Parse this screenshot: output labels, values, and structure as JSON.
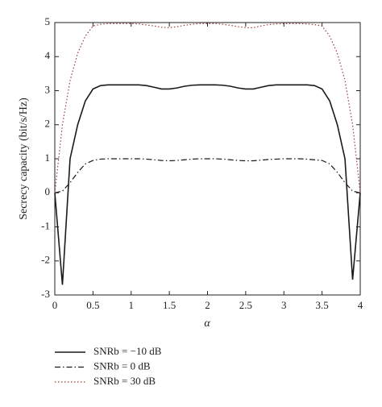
{
  "chart_data": {
    "type": "line",
    "xlabel": "α",
    "ylabel": "Secrecy capacity (bit/s/Hz)",
    "x": [
      0,
      0.1,
      0.2,
      0.3,
      0.4,
      0.5,
      0.6,
      0.7,
      0.8,
      0.9,
      1.0,
      1.1,
      1.2,
      1.3,
      1.4,
      1.5,
      1.6,
      1.7,
      1.8,
      1.9,
      2.0,
      2.1,
      2.2,
      2.3,
      2.4,
      2.5,
      2.6,
      2.7,
      2.8,
      2.9,
      3.0,
      3.1,
      3.2,
      3.3,
      3.4,
      3.5,
      3.6,
      3.7,
      3.8,
      3.9,
      4.0
    ],
    "series": [
      {
        "name": "SNRb = −10 dB",
        "color": "#1a1a1a",
        "linestyle": "solid",
        "values": [
          0,
          -2.7,
          1.0,
          2.0,
          2.7,
          3.05,
          3.15,
          3.17,
          3.17,
          3.17,
          3.17,
          3.17,
          3.15,
          3.1,
          3.05,
          3.05,
          3.08,
          3.13,
          3.16,
          3.17,
          3.17,
          3.17,
          3.16,
          3.13,
          3.08,
          3.05,
          3.05,
          3.1,
          3.15,
          3.17,
          3.17,
          3.17,
          3.17,
          3.17,
          3.15,
          3.05,
          2.7,
          2.0,
          1.0,
          -2.55,
          0
        ]
      },
      {
        "name": "SNRb = 0 dB",
        "color": "#1a1a1a",
        "linestyle": "dashdot",
        "values": [
          0,
          0.05,
          0.3,
          0.6,
          0.85,
          0.95,
          0.99,
          1.0,
          1.0,
          1.0,
          1.0,
          1.0,
          0.99,
          0.97,
          0.95,
          0.94,
          0.95,
          0.97,
          0.99,
          1.0,
          1.0,
          1.0,
          0.99,
          0.97,
          0.95,
          0.94,
          0.94,
          0.96,
          0.98,
          0.99,
          1.0,
          1.0,
          1.0,
          0.99,
          0.97,
          0.95,
          0.85,
          0.6,
          0.3,
          0.05,
          0
        ]
      },
      {
        "name": "SNRb = 30 dB",
        "color": "#a33a3a",
        "linestyle": "dotted",
        "values": [
          0,
          2.0,
          3.3,
          4.1,
          4.6,
          4.9,
          4.95,
          4.97,
          4.97,
          4.97,
          4.97,
          4.96,
          4.93,
          4.9,
          4.86,
          4.85,
          4.88,
          4.92,
          4.95,
          4.97,
          4.97,
          4.97,
          4.95,
          4.92,
          4.88,
          4.85,
          4.85,
          4.9,
          4.94,
          4.96,
          4.97,
          4.97,
          4.97,
          4.96,
          4.94,
          4.9,
          4.6,
          4.1,
          3.3,
          2.0,
          0
        ]
      }
    ],
    "xlim": [
      0,
      4
    ],
    "xticks": [
      0,
      0.5,
      1,
      1.5,
      2,
      2.5,
      3,
      3.5,
      4
    ],
    "ylim": [
      -3,
      5
    ],
    "yticks": [
      -3,
      -2,
      -1,
      0,
      1,
      2,
      3,
      4,
      5
    ],
    "grid": false,
    "legend": "bottom"
  }
}
